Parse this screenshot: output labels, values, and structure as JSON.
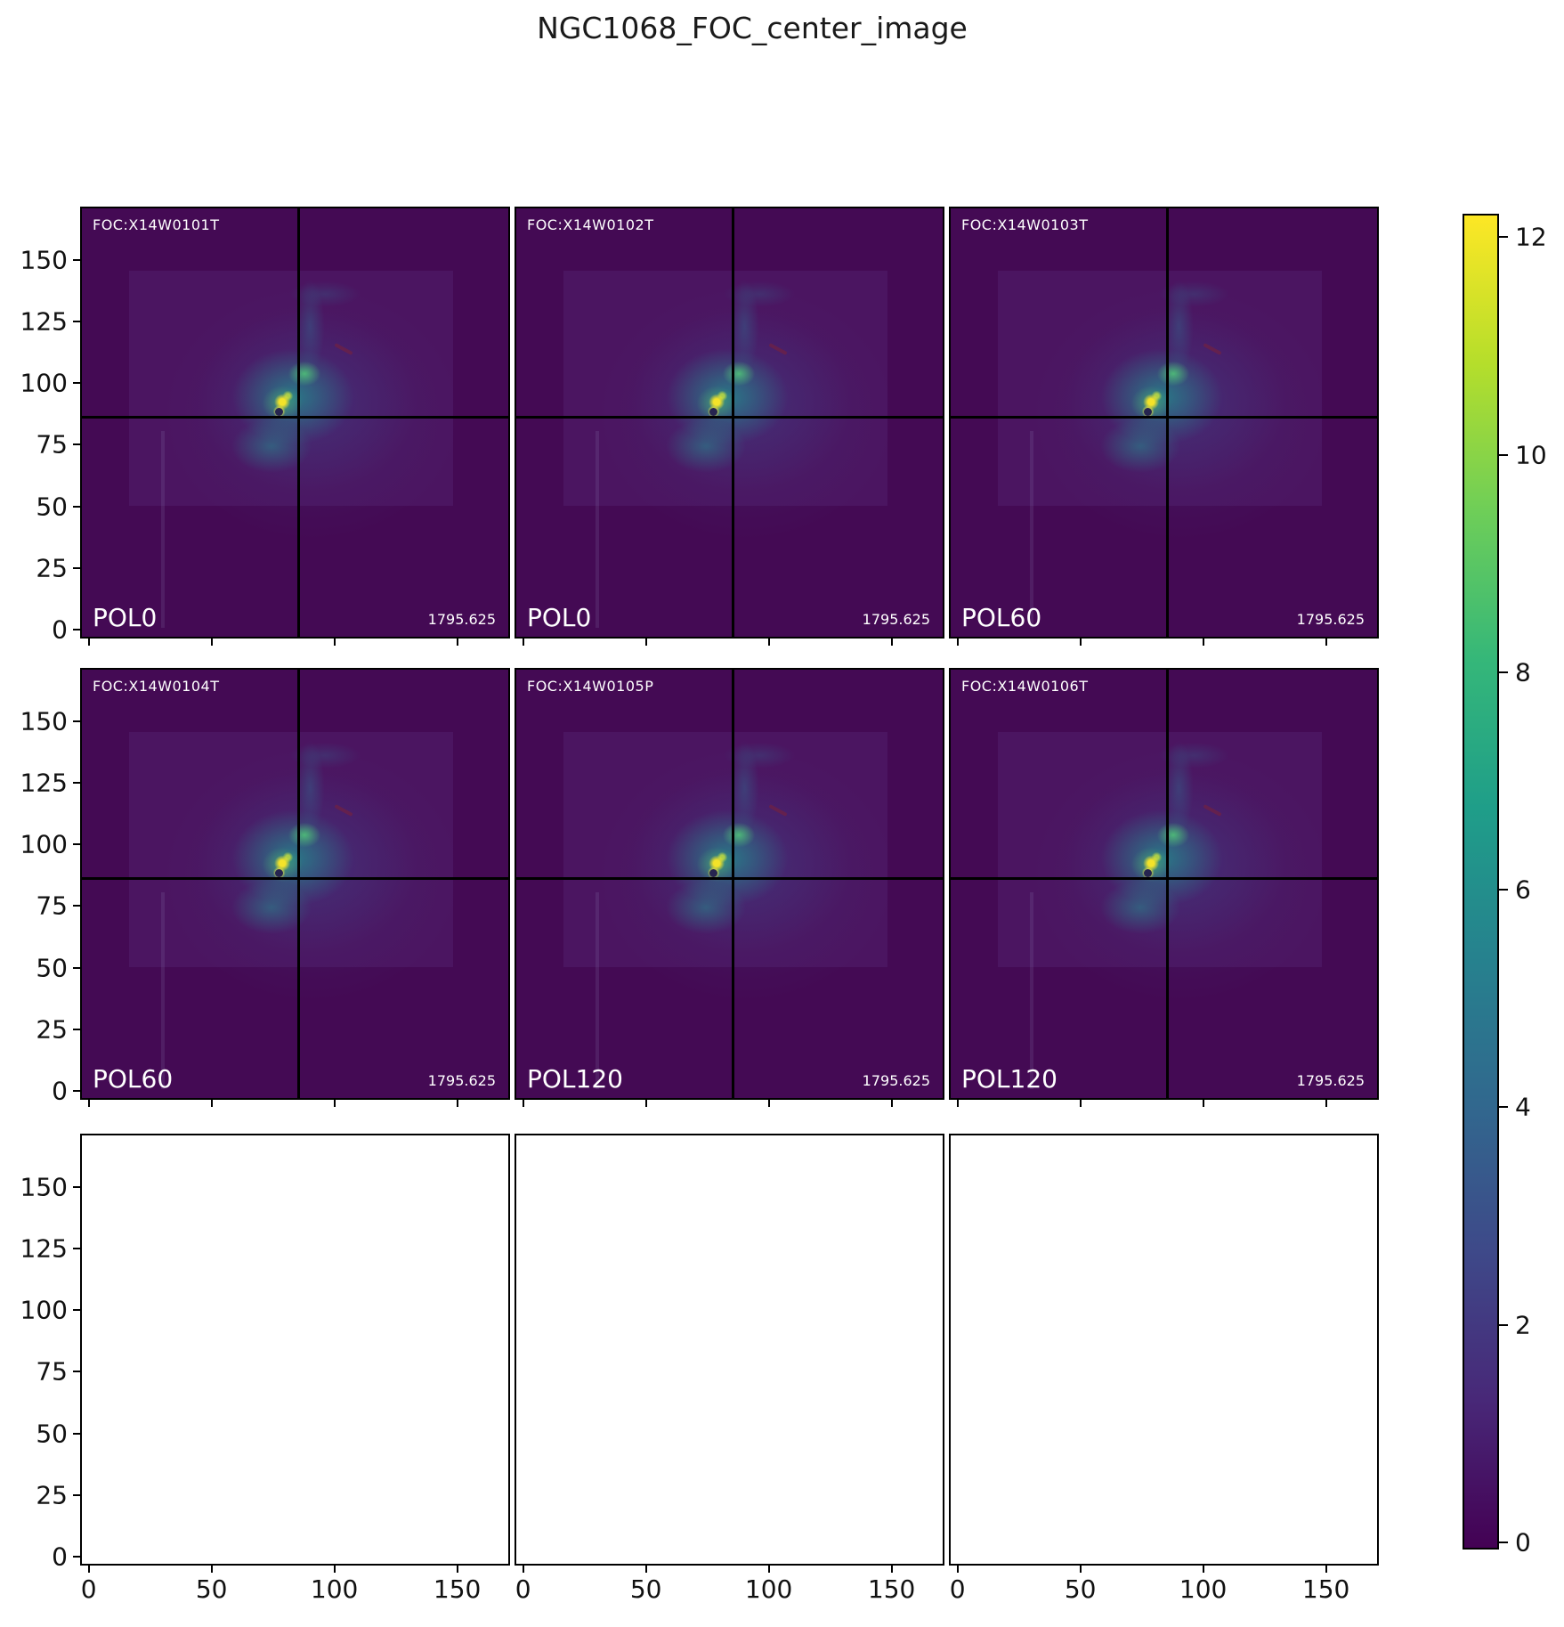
{
  "figure": {
    "title": "NGC1068_FOC_center_image"
  },
  "panels": [
    {
      "foc_label": "FOC:X14W0101T",
      "pol_label": "POL0",
      "exposure_value": "1795.625"
    },
    {
      "foc_label": "FOC:X14W0102T",
      "pol_label": "POL0",
      "exposure_value": "1795.625"
    },
    {
      "foc_label": "FOC:X14W0103T",
      "pol_label": "POL60",
      "exposure_value": "1795.625"
    },
    {
      "foc_label": "FOC:X14W0104T",
      "pol_label": "POL60",
      "exposure_value": "1795.625"
    },
    {
      "foc_label": "FOC:X14W0105P",
      "pol_label": "POL120",
      "exposure_value": "1795.625"
    },
    {
      "foc_label": "FOC:X14W0106T",
      "pol_label": "POL120",
      "exposure_value": "1795.625"
    }
  ],
  "axes": {
    "x_tick_values": [
      0,
      50,
      100,
      150
    ],
    "y_tick_values": [
      150,
      125,
      100,
      75,
      50,
      25,
      0
    ],
    "xlim": [
      -3.5,
      171.5
    ],
    "ylim": [
      -3.5,
      171.5
    ]
  },
  "colorbar": {
    "tick_values": [
      12,
      10,
      8,
      6,
      4,
      2,
      0
    ],
    "vmin": -0.05,
    "vmax": 12.2,
    "colormap": "viridis",
    "stops": [
      "#440154",
      "#482878",
      "#3e4989",
      "#31688e",
      "#26828e",
      "#1f9e89",
      "#35b779",
      "#6ece58",
      "#b5de2b",
      "#fde725"
    ]
  },
  "chart_data": {
    "type": "heatmap",
    "title": "NGC1068_FOC_center_image",
    "layout": "3x3 subplot grid; top two rows show FOC polarimetric images of the NGC1068 center with black crosshair lines at pixel (85, 85); bottom row panels are empty; shared viridis colorbar on the right",
    "panels": [
      {
        "grid_position": [
          0,
          0
        ],
        "dataset": "FOC:X14W0101T",
        "polarizer": "POL0",
        "exposure": 1795.625,
        "crosshair": [
          85,
          85
        ]
      },
      {
        "grid_position": [
          0,
          1
        ],
        "dataset": "FOC:X14W0102T",
        "polarizer": "POL0",
        "exposure": 1795.625,
        "crosshair": [
          85,
          85
        ]
      },
      {
        "grid_position": [
          0,
          2
        ],
        "dataset": "FOC:X14W0103T",
        "polarizer": "POL60",
        "exposure": 1795.625,
        "crosshair": [
          85,
          85
        ]
      },
      {
        "grid_position": [
          1,
          0
        ],
        "dataset": "FOC:X14W0104T",
        "polarizer": "POL60",
        "exposure": 1795.625,
        "crosshair": [
          85,
          85
        ]
      },
      {
        "grid_position": [
          1,
          1
        ],
        "dataset": "FOC:X14W0105P",
        "polarizer": "POL120",
        "exposure": 1795.625,
        "crosshair": [
          85,
          85
        ]
      },
      {
        "grid_position": [
          1,
          2
        ],
        "dataset": "FOC:X14W0106T",
        "polarizer": "POL120",
        "exposure": 1795.625,
        "crosshair": [
          85,
          85
        ]
      },
      {
        "grid_position": [
          2,
          0
        ],
        "dataset": null,
        "note": "empty axes"
      },
      {
        "grid_position": [
          2,
          1
        ],
        "dataset": null,
        "note": "empty axes"
      },
      {
        "grid_position": [
          2,
          2
        ],
        "dataset": null,
        "note": "empty axes"
      }
    ],
    "x_ticks": [
      0,
      50,
      100,
      150
    ],
    "y_ticks": [
      0,
      25,
      50,
      75,
      100,
      125,
      150
    ],
    "xlim": [
      -3.5,
      171.5
    ],
    "ylim": [
      -3.5,
      171.5
    ],
    "colorbar_range": [
      0,
      12
    ],
    "colormap": "viridis",
    "legend_position": "none",
    "grid": false
  }
}
